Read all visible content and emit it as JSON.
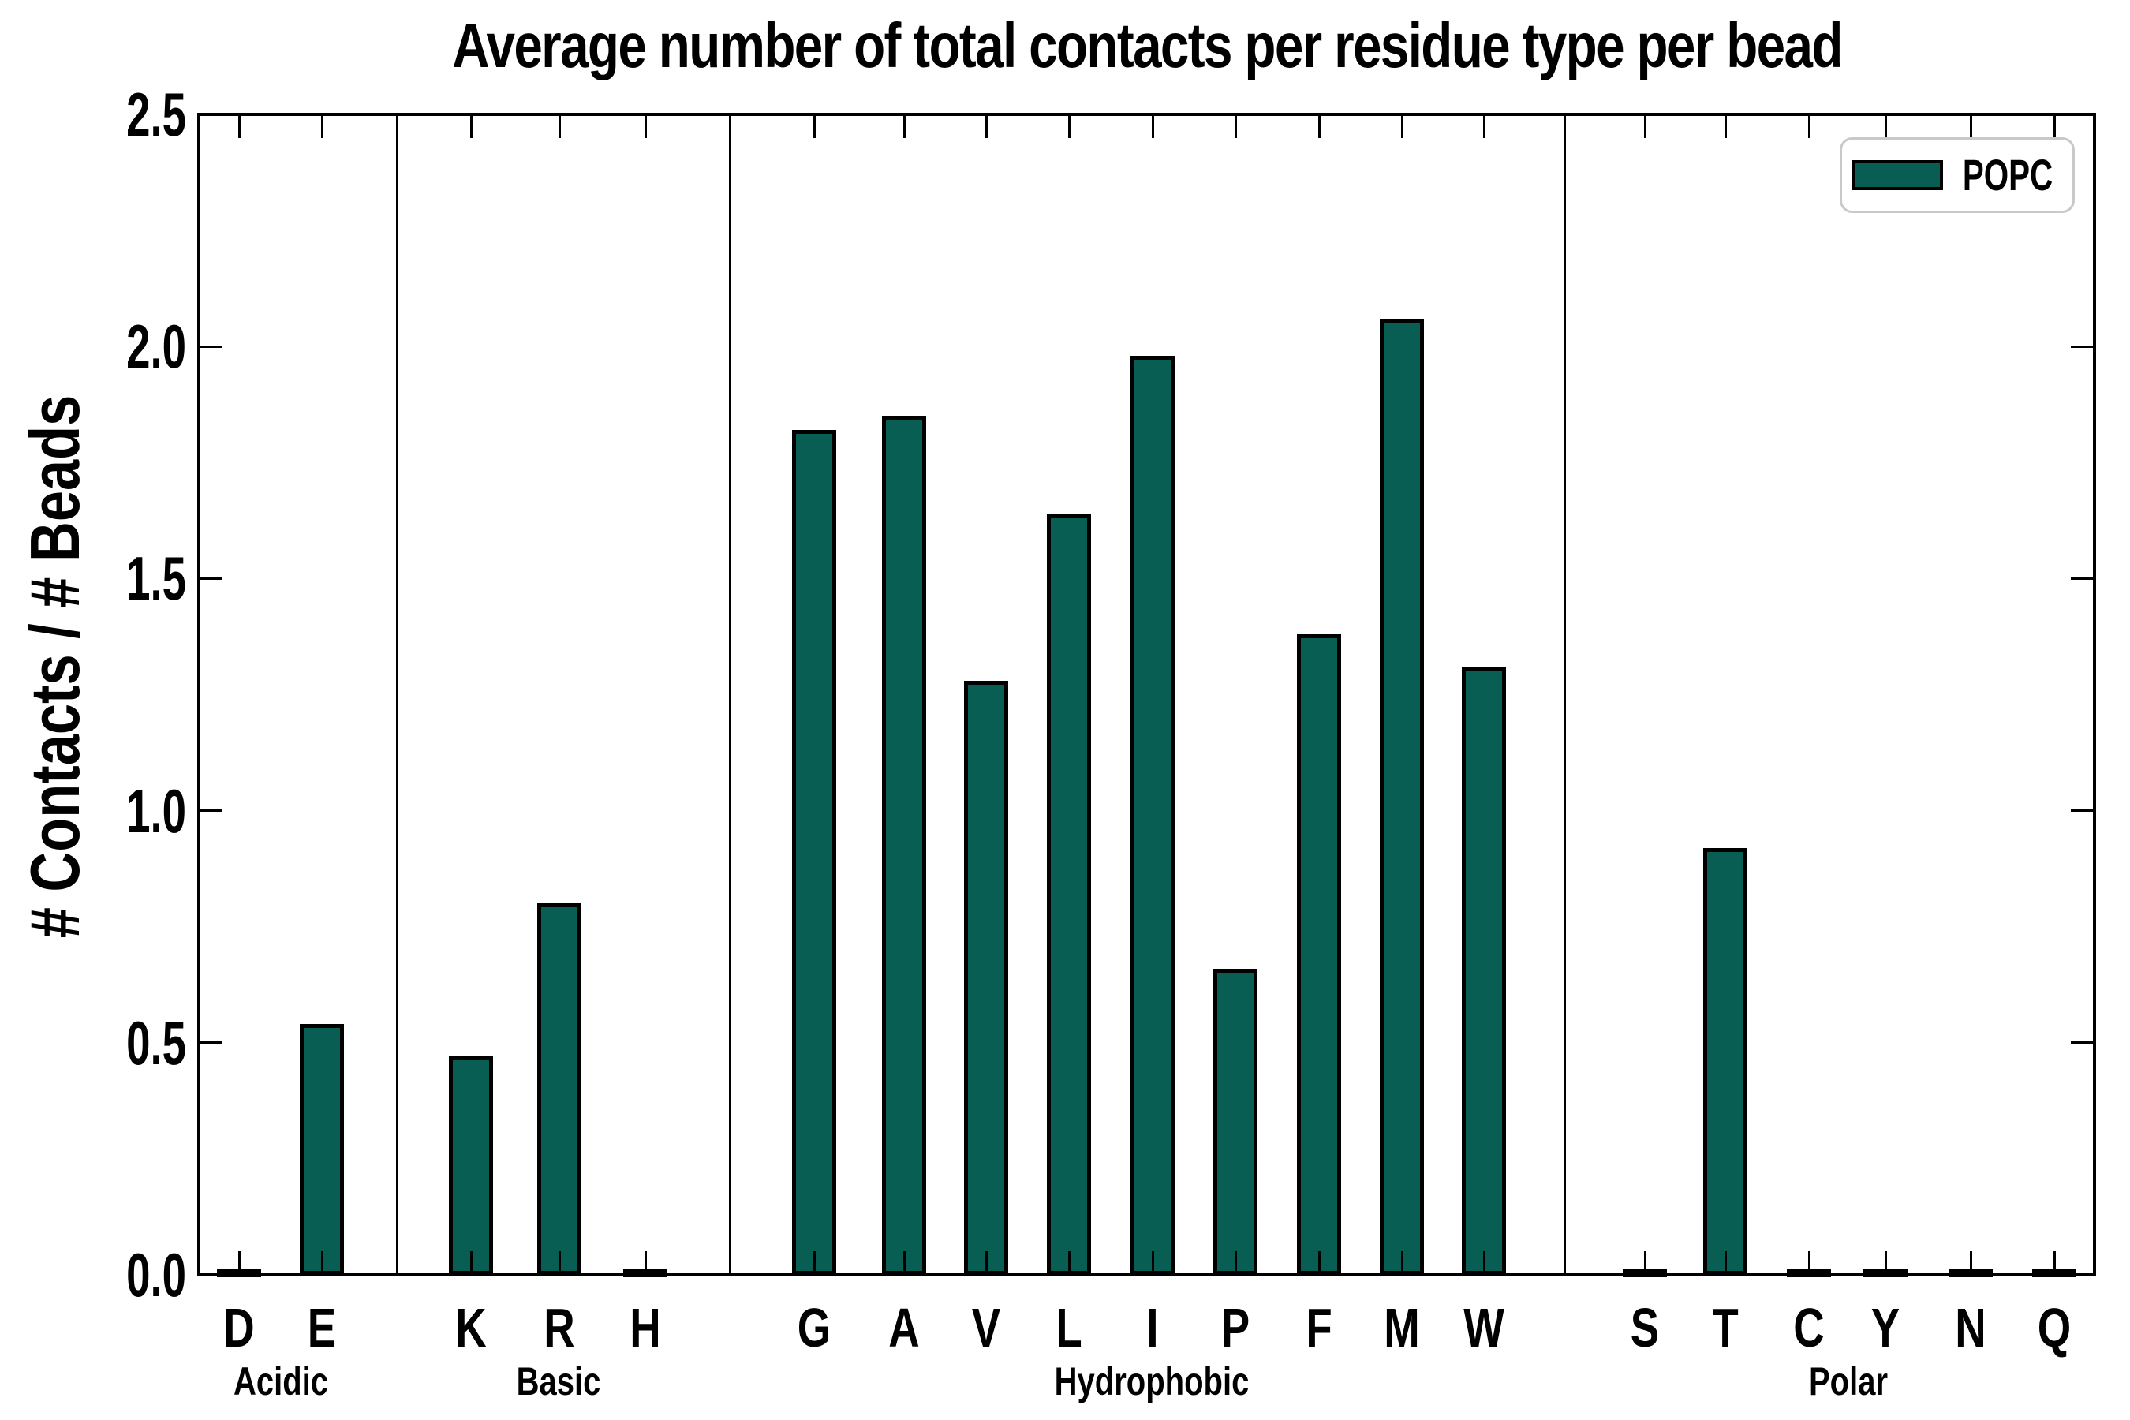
{
  "title": "Average number of total contacts per residue type per bead",
  "y_axis": {
    "label": "# Contacts / # Beads",
    "ticks": [
      "0.0",
      "0.5",
      "1.0",
      "1.5",
      "2.0",
      "2.5"
    ],
    "min": 0.0,
    "max": 2.5
  },
  "legend": {
    "label": "POPC"
  },
  "colors": {
    "bar_fill": "#085e52",
    "bar_edge": "#000000",
    "axis": "#000000",
    "legend_border": "#c9c9c9"
  },
  "chart_data": {
    "type": "bar",
    "title": "Average number of total contacts per residue type per bead",
    "xlabel": "",
    "ylabel": "# Contacts / # Beads",
    "ylim": [
      0,
      2.5
    ],
    "grid": false,
    "legend_position": "upper right",
    "series_name": "POPC",
    "categories": [
      "D",
      "E",
      "K",
      "R",
      "H",
      "G",
      "A",
      "V",
      "L",
      "I",
      "P",
      "F",
      "M",
      "W",
      "S",
      "T",
      "C",
      "Y",
      "N",
      "Q"
    ],
    "values": [
      0.005,
      0.54,
      0.47,
      0.8,
      0.005,
      1.82,
      1.85,
      1.28,
      1.64,
      1.98,
      0.66,
      1.38,
      2.06,
      1.31,
      0.005,
      0.92,
      0.005,
      0.005,
      0.005,
      0.005
    ],
    "groups": [
      {
        "label": "Acidic",
        "categories": [
          "D",
          "E"
        ]
      },
      {
        "label": "Basic",
        "categories": [
          "K",
          "R",
          "H"
        ]
      },
      {
        "label": "Hydrophobic",
        "categories": [
          "G",
          "A",
          "V",
          "L",
          "I",
          "P",
          "F",
          "M",
          "W"
        ]
      },
      {
        "label": "Polar",
        "categories": [
          "S",
          "T",
          "C",
          "Y",
          "N",
          "Q"
        ]
      }
    ]
  }
}
